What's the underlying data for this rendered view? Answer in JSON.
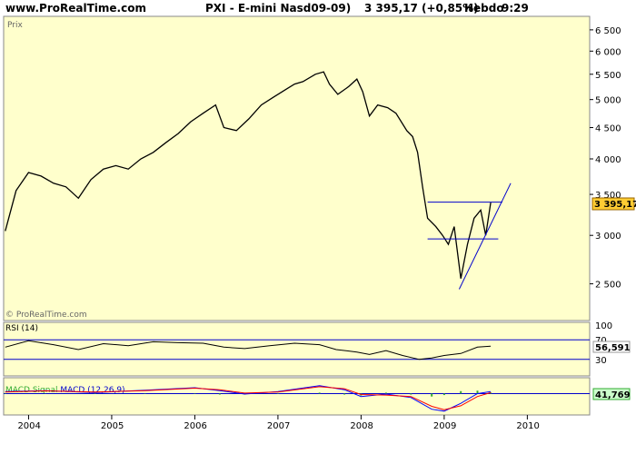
{
  "header": {
    "site": "www.ProRealTime.com",
    "instrument": "PXI - E-mini Nasd09-09)",
    "quote": "3 395,17 (+0,85%)",
    "period": "Hebdo",
    "time": "9:29"
  },
  "price_panel": {
    "label": "Prix",
    "watermark": "© ProRealTime.com",
    "last_value_label": "3 395,17"
  },
  "rsi_panel": {
    "label": "RSI (14)",
    "last_value_label": "56,591"
  },
  "macd_panel": {
    "label_main": "MACD ",
    "label_signal": "Signal ",
    "label_hist": "MACD (12,26,9)",
    "last_value_label": "41,769"
  },
  "colors": {
    "panel_bg": "#ffffcc",
    "page_bg": "#ffffff",
    "price_line": "#000000",
    "guide_line": "#0000cc",
    "last_value_box": "#ffcc33",
    "macd_line": "#0000ff",
    "signal_line": "#ff0000",
    "histogram": "#33aa33"
  },
  "chart_data": [
    {
      "type": "line",
      "panel": "price",
      "ylim": [
        2200,
        6700
      ],
      "y_ticks": [
        2500,
        3000,
        3500,
        4000,
        4500,
        5000,
        5500,
        6000,
        6500
      ],
      "y_tick_labels": [
        "2 500",
        "3 000",
        "3 500",
        "4 000",
        "4 500",
        "5 000",
        "5 500",
        "6 000",
        "6 500"
      ],
      "xlim": [
        2003.7,
        2010.75
      ],
      "x_ticks": [
        2004,
        2005,
        2006,
        2007,
        2008,
        2009,
        2010
      ],
      "x_tick_labels": [
        "2004",
        "2005",
        "2006",
        "2007",
        "2008",
        "2009",
        "2010"
      ],
      "series": [
        {
          "x": [
            2003.72,
            2003.85,
            2004.0,
            2004.15,
            2004.3,
            2004.45,
            2004.6,
            2004.75,
            2004.9,
            2005.05,
            2005.2,
            2005.35,
            2005.5,
            2005.65,
            2005.8,
            2005.95,
            2006.1,
            2006.25,
            2006.35,
            2006.5,
            2006.65,
            2006.8,
            2006.95,
            2007.1,
            2007.2,
            2007.3,
            2007.45,
            2007.55,
            2007.62,
            2007.72,
            2007.85,
            2007.95,
            2008.02,
            2008.1,
            2008.2,
            2008.32,
            2008.42,
            2008.55,
            2008.62,
            2008.68,
            2008.74,
            2008.8,
            2008.9,
            2008.98,
            2009.05,
            2009.12,
            2009.2,
            2009.28,
            2009.36,
            2009.44,
            2009.5,
            2009.56
          ],
          "values": [
            3050,
            3550,
            3800,
            3750,
            3650,
            3600,
            3450,
            3700,
            3850,
            3900,
            3850,
            4000,
            4100,
            4250,
            4400,
            4600,
            4750,
            4900,
            4500,
            4450,
            4650,
            4900,
            5050,
            5200,
            5300,
            5350,
            5500,
            5550,
            5300,
            5100,
            5250,
            5400,
            5150,
            4700,
            4900,
            4850,
            4750,
            4450,
            4350,
            4100,
            3600,
            3200,
            3100,
            3000,
            2900,
            3100,
            2550,
            2900,
            3200,
            3300,
            3000,
            3395
          ]
        },
        {
          "name": "",
          "x": [
            2008.8,
            2009.7
          ],
          "values": [
            3400,
            3400
          ]
        },
        {
          "name": "",
          "x": [
            2008.8,
            2009.65
          ],
          "values": [
            2960,
            2960
          ]
        },
        {
          "name": "",
          "x": [
            2009.18,
            2009.8
          ],
          "values": [
            2450,
            3650
          ]
        }
      ]
    },
    {
      "type": "line",
      "panel": "rsi",
      "ylim": [
        0,
        100
      ],
      "y_ticks": [
        30,
        70,
        100
      ],
      "y_tick_labels": [
        "30",
        "70",
        "100"
      ],
      "series": [
        {
          "x": [
            2003.72,
            2004.0,
            2004.3,
            2004.6,
            2004.9,
            2005.2,
            2005.5,
            2005.8,
            2006.1,
            2006.35,
            2006.6,
            2006.9,
            2007.2,
            2007.5,
            2007.7,
            2007.95,
            2008.1,
            2008.3,
            2008.5,
            2008.7,
            2008.85,
            2009.0,
            2009.2,
            2009.4,
            2009.56
          ],
          "values": [
            55,
            68,
            60,
            50,
            62,
            58,
            66,
            64,
            63,
            55,
            52,
            58,
            63,
            60,
            50,
            45,
            40,
            48,
            38,
            30,
            33,
            38,
            42,
            55,
            57
          ]
        }
      ]
    },
    {
      "type": "line",
      "panel": "macd",
      "ylim": [
        -400,
        250
      ],
      "series": [
        {
          "name": "MACD",
          "x": [
            2003.72,
            2004.2,
            2004.8,
            2005.4,
            2006.0,
            2006.3,
            2006.6,
            2007.0,
            2007.5,
            2007.8,
            2008.0,
            2008.3,
            2008.6,
            2008.85,
            2009.0,
            2009.2,
            2009.4,
            2009.56
          ],
          "values": [
            40,
            60,
            20,
            70,
            120,
            60,
            -10,
            40,
            160,
            80,
            -60,
            -10,
            -80,
            -320,
            -360,
            -200,
            0,
            42
          ]
        },
        {
          "name": "Signal",
          "x": [
            2003.72,
            2004.2,
            2004.8,
            2005.4,
            2006.0,
            2006.3,
            2006.6,
            2007.0,
            2007.5,
            2007.8,
            2008.0,
            2008.3,
            2008.6,
            2008.85,
            2009.0,
            2009.2,
            2009.4,
            2009.56
          ],
          "values": [
            30,
            55,
            30,
            60,
            110,
            80,
            10,
            30,
            140,
            100,
            -20,
            -30,
            -60,
            -260,
            -330,
            -250,
            -60,
            20
          ]
        }
      ]
    }
  ]
}
